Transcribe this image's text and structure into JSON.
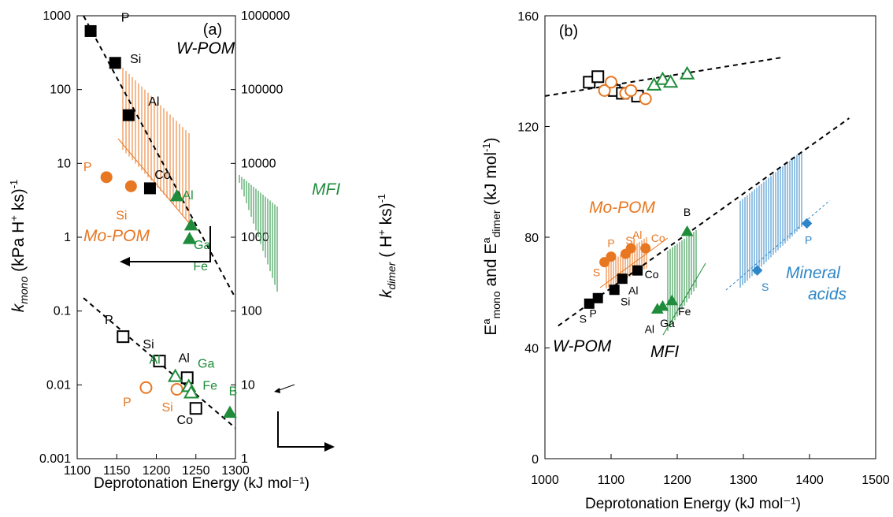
{
  "colors": {
    "black": "#000000",
    "orange": "#E87722",
    "green": "#1E8C3A",
    "blue": "#2E86C8"
  },
  "chart_data": [
    {
      "panel": "a",
      "type": "scatter",
      "panel_label": "(a)",
      "xlabel": "Deprotonation Energy (kJ mol⁻¹)",
      "ylabel_left": "k_mono (kPa H⁺ ks)⁻¹",
      "ylabel_right": "k_dimer ( H⁺ ks)⁻¹",
      "xlim": [
        1100,
        1300
      ],
      "ylim_left": [
        0.001,
        1000
      ],
      "ylim_right": [
        1,
        1000000
      ],
      "yscale": "log",
      "grid": false,
      "xticks": [
        "1100",
        "1150",
        "1200",
        "1250",
        "1300"
      ],
      "yticks_left": [
        "0.001",
        "0.01",
        "0.1",
        "1",
        "10",
        "100",
        "1000"
      ],
      "yticks_right": [
        "1",
        "10",
        "100",
        "1000",
        "10000",
        "100000",
        "1000000"
      ],
      "series": [
        {
          "axis": "left",
          "color": "black",
          "marker": "square",
          "filled": true,
          "points": [
            {
              "x": 1117,
              "y": 620,
              "label": "P"
            },
            {
              "x": 1148,
              "y": 230,
              "label": "Si"
            },
            {
              "x": 1165,
              "y": 45,
              "label": "Al"
            },
            {
              "x": 1192,
              "y": 4.6,
              "label": "Co"
            }
          ]
        },
        {
          "axis": "left",
          "color": "orange",
          "marker": "circle",
          "filled": true,
          "points": [
            {
              "x": 1137,
              "y": 6.5,
              "label": "P"
            },
            {
              "x": 1168,
              "y": 4.9,
              "label": "Si"
            }
          ]
        },
        {
          "axis": "left",
          "color": "green",
          "marker": "triangle",
          "filled": true,
          "points": [
            {
              "x": 1226,
              "y": 3.6,
              "label": "Al"
            },
            {
              "x": 1244,
              "y": 1.45,
              "label": "Ga"
            },
            {
              "x": 1242,
              "y": 0.95,
              "label": "Fe"
            },
            {
              "x": 1293,
              "y": 0.0042,
              "label": "B"
            }
          ]
        },
        {
          "axis": "right",
          "color": "black",
          "marker": "square",
          "filled": false,
          "points": [
            {
              "x": 1158,
              "y": 45,
              "label": "P"
            },
            {
              "x": 1204,
              "y": 21,
              "label": "Si"
            },
            {
              "x": 1239,
              "y": 12.5,
              "label": "Al"
            },
            {
              "x": 1250,
              "y": 4.8,
              "label": "Co"
            }
          ]
        },
        {
          "axis": "right",
          "color": "orange",
          "marker": "circle",
          "filled": false,
          "points": [
            {
              "x": 1187,
              "y": 9.2,
              "label": "P"
            },
            {
              "x": 1226,
              "y": 8.7,
              "label": "Si"
            }
          ]
        },
        {
          "axis": "right",
          "color": "green",
          "marker": "triangle",
          "filled": false,
          "points": [
            {
              "x": 1224,
              "y": 13,
              "label": "Al"
            },
            {
              "x": 1241,
              "y": 9.5,
              "label": "Ga"
            },
            {
              "x": 1244,
              "y": 7.8,
              "label": "Fe"
            }
          ]
        }
      ],
      "trend_lines": [
        {
          "axis": "left",
          "x": [
            1108,
            1300
          ],
          "y": [
            1000,
            0.15
          ],
          "style": "dashed"
        },
        {
          "axis": "right",
          "x": [
            1108,
            1300
          ],
          "y": [
            150,
            2.6
          ],
          "style": "dashed"
        }
      ],
      "annotations": [
        "W-POM",
        "Mo-POM",
        "MFI"
      ]
    },
    {
      "panel": "b",
      "type": "scatter",
      "panel_label": "(b)",
      "xlabel": "Deprotonation Energy (kJ mol⁻¹)",
      "ylabel": "Eᵃmono and Eᵃdimer (kJ mol⁻¹)",
      "xlim": [
        1000,
        1500
      ],
      "ylim": [
        0,
        160
      ],
      "grid": false,
      "xticks": [
        "1000",
        "1100",
        "1200",
        "1300",
        "1400",
        "1500"
      ],
      "yticks": [
        "0",
        "40",
        "80",
        "120",
        "160"
      ],
      "series": [
        {
          "color": "black",
          "marker": "square",
          "filled": true,
          "points": [
            {
              "x": 1067,
              "y": 56,
              "label": "S"
            },
            {
              "x": 1080,
              "y": 58,
              "label": "P"
            },
            {
              "x": 1105,
              "y": 61,
              "label": "Si"
            },
            {
              "x": 1117,
              "y": 65,
              "label": "Al"
            },
            {
              "x": 1140,
              "y": 68,
              "label": "Co"
            }
          ]
        },
        {
          "color": "orange",
          "marker": "circle",
          "filled": true,
          "points": [
            {
              "x": 1090,
              "y": 71,
              "label": "S"
            },
            {
              "x": 1100,
              "y": 73,
              "label": "P"
            },
            {
              "x": 1122,
              "y": 74,
              "label": "Si"
            },
            {
              "x": 1130,
              "y": 76,
              "label": "Al"
            },
            {
              "x": 1152,
              "y": 76,
              "label": "Co"
            }
          ]
        },
        {
          "color": "green",
          "marker": "triangle",
          "filled": true,
          "points": [
            {
              "x": 1170,
              "y": 54,
              "label": "Al"
            },
            {
              "x": 1178,
              "y": 55,
              "label": "Ga"
            },
            {
              "x": 1192,
              "y": 57,
              "label": "Fe"
            },
            {
              "x": 1215,
              "y": 82,
              "label": "B"
            }
          ]
        },
        {
          "color": "blue",
          "marker": "diamond",
          "filled": true,
          "points": [
            {
              "x": 1321,
              "y": 68,
              "label": "S"
            },
            {
              "x": 1396,
              "y": 85,
              "label": "P"
            }
          ]
        },
        {
          "color": "black",
          "marker": "square",
          "filled": false,
          "points": [
            {
              "x": 1067,
              "y": 136
            },
            {
              "x": 1080,
              "y": 138
            },
            {
              "x": 1105,
              "y": 133
            },
            {
              "x": 1117,
              "y": 132
            },
            {
              "x": 1140,
              "y": 131
            }
          ]
        },
        {
          "color": "orange",
          "marker": "circle",
          "filled": false,
          "points": [
            {
              "x": 1090,
              "y": 133
            },
            {
              "x": 1100,
              "y": 136
            },
            {
              "x": 1122,
              "y": 132
            },
            {
              "x": 1130,
              "y": 133
            },
            {
              "x": 1152,
              "y": 130
            }
          ]
        },
        {
          "color": "green",
          "marker": "triangle",
          "filled": false,
          "points": [
            {
              "x": 1165,
              "y": 135
            },
            {
              "x": 1178,
              "y": 137
            },
            {
              "x": 1190,
              "y": 136
            },
            {
              "x": 1215,
              "y": 139
            }
          ]
        }
      ],
      "trend_lines": [
        {
          "x": [
            1000,
            1360
          ],
          "y": [
            131,
            145
          ],
          "style": "dashed",
          "color": "black"
        },
        {
          "x": [
            1020,
            1460
          ],
          "y": [
            48,
            123
          ],
          "style": "dashed",
          "color": "black"
        }
      ],
      "annotations": [
        "Mo-POM",
        "W-POM",
        "MFI",
        "Mineral",
        "acids"
      ]
    }
  ]
}
